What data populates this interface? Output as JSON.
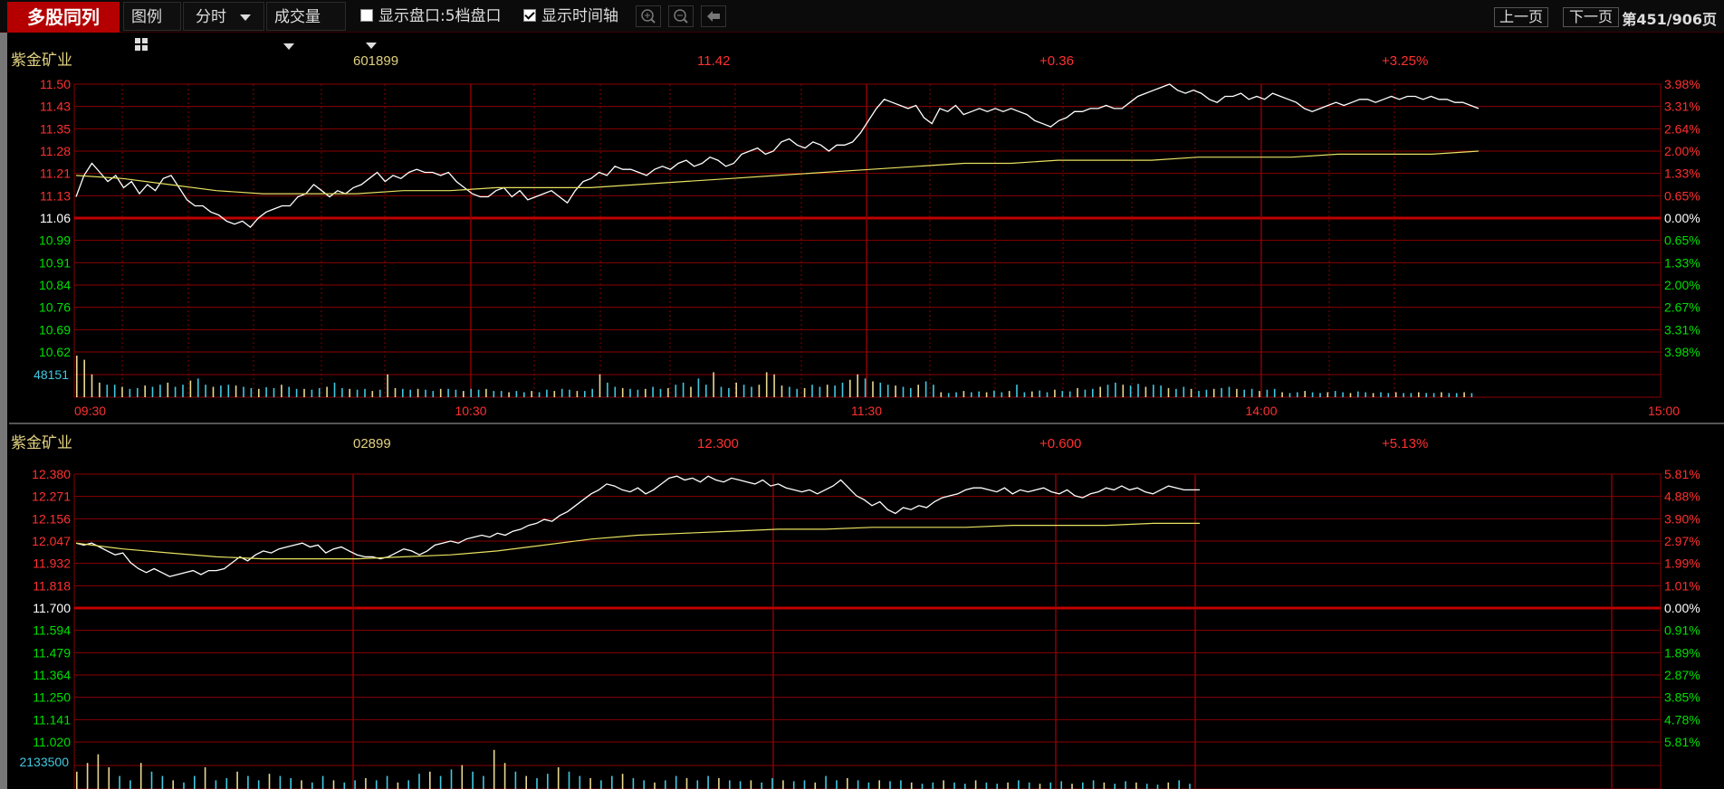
{
  "toolbar": {
    "title": "多股同列",
    "legend_label": "图例",
    "period": "分时",
    "indicator": "成交量",
    "show_orderbook_label": "显示盘口:5档盘口",
    "show_orderbook_checked": false,
    "show_time_axis_label": "显示时间轴",
    "show_time_axis_checked": true,
    "prev_page": "上一页",
    "next_page": "下一页",
    "page_info": "第451/906页"
  },
  "colors": {
    "bg": "#000000",
    "grid": "#8a0000",
    "grid_zero": "#c00000",
    "up": "#ff3030",
    "down": "#00e000",
    "price_line": "#ffffff",
    "avg_line": "#e8e060",
    "name": "#e0d080",
    "volume_up": "#e8d890",
    "volume_down": "#40c8e0",
    "volume_label": "#40c8e0"
  },
  "panels": [
    {
      "name": "紫金矿业",
      "code": "601899",
      "price": "11.42",
      "change": "+0.36",
      "change_pct": "+3.25%",
      "price_ticks": [
        "11.50",
        "11.43",
        "11.35",
        "11.28",
        "11.21",
        "11.13",
        "11.06",
        "10.99",
        "10.91",
        "10.84",
        "10.76",
        "10.69",
        "10.62"
      ],
      "pct_ticks": [
        "3.98%",
        "3.31%",
        "2.64%",
        "2.00%",
        "1.33%",
        "0.65%",
        "0.00%",
        "0.65%",
        "1.33%",
        "2.00%",
        "2.67%",
        "3.31%",
        "3.98%"
      ],
      "volume_label": "48151",
      "time_labels": [
        "09:30",
        "10:30",
        "11:30",
        "14:00",
        "15:00"
      ],
      "chart_data": {
        "type": "line",
        "series": [
          {
            "role": "price",
            "values": [
              11.13,
              11.2,
              11.24,
              11.21,
              11.18,
              11.2,
              11.16,
              11.18,
              11.14,
              11.17,
              11.15,
              11.19,
              11.2,
              11.16,
              11.12,
              11.1,
              11.1,
              11.08,
              11.07,
              11.05,
              11.04,
              11.05,
              11.03,
              11.06,
              11.08,
              11.09,
              11.1,
              11.1,
              11.13,
              11.14,
              11.17,
              11.15,
              11.13,
              11.15,
              11.14,
              11.16,
              11.17,
              11.19,
              11.21,
              11.18,
              11.2,
              11.19,
              11.21,
              11.22,
              11.21,
              11.21,
              11.2,
              11.21,
              11.18,
              11.16,
              11.14,
              11.13,
              11.13,
              11.15,
              11.16,
              11.13,
              11.15,
              11.12,
              11.13,
              11.14,
              11.15,
              11.13,
              11.11,
              11.15,
              11.18,
              11.19,
              11.21,
              11.2,
              11.23,
              11.22,
              11.22,
              11.21,
              11.2,
              11.22,
              11.23,
              11.22,
              11.24,
              11.25,
              11.23,
              11.24,
              11.26,
              11.25,
              11.23,
              11.24,
              11.27,
              11.28,
              11.29,
              11.27,
              11.28,
              11.31,
              11.32,
              11.3,
              11.29,
              11.31,
              11.3,
              11.28,
              11.3,
              11.3,
              11.31,
              11.34,
              11.38,
              11.42,
              11.45,
              11.44,
              11.43,
              11.42,
              11.43,
              11.39,
              11.37,
              11.42,
              11.41,
              11.43,
              11.4,
              11.41,
              11.42,
              11.41,
              11.42,
              11.41,
              11.42,
              11.41,
              11.4,
              11.38,
              11.37,
              11.36,
              11.38,
              11.39,
              11.41,
              11.41,
              11.42,
              11.42,
              11.43,
              11.42,
              11.42,
              11.44,
              11.46,
              11.47,
              11.48,
              11.49,
              11.5,
              11.48,
              11.47,
              11.48,
              11.47,
              11.45,
              11.44,
              11.46,
              11.46,
              11.47,
              11.45,
              11.46,
              11.45,
              11.47,
              11.46,
              11.45,
              11.44,
              11.42,
              11.41,
              11.42,
              11.43,
              11.44,
              11.43,
              11.44,
              11.45,
              11.45,
              11.44,
              11.45,
              11.46,
              11.45,
              11.46,
              11.46,
              11.45,
              11.46,
              11.45,
              11.45,
              11.44,
              11.44,
              11.43,
              11.42
            ]
          },
          {
            "role": "average",
            "values": [
              11.2,
              11.19,
              11.17,
              11.15,
              11.14,
              11.14,
              11.14,
              11.15,
              11.15,
              11.16,
              11.16,
              11.16,
              11.17,
              11.18,
              11.19,
              11.2,
              11.21,
              11.22,
              11.23,
              11.24,
              11.24,
              11.25,
              11.25,
              11.25,
              11.26,
              11.26,
              11.26,
              11.27,
              11.27,
              11.27,
              11.28
            ]
          }
        ],
        "ylim": [
          10.62,
          11.5
        ],
        "prev_close": 11.06
      },
      "volume_data": {
        "values": [
          1,
          0.9,
          0.55,
          0.35,
          0.3,
          0.3,
          0.25,
          0.2,
          0.22,
          0.28,
          0.25,
          0.3,
          0.35,
          0.25,
          0.3,
          0.4,
          0.45,
          0.3,
          0.25,
          0.28,
          0.3,
          0.28,
          0.25,
          0.22,
          0.2,
          0.24,
          0.22,
          0.3,
          0.25,
          0.2,
          0.2,
          0.18,
          0.22,
          0.25,
          0.35,
          0.22,
          0.2,
          0.18,
          0.2,
          0.15,
          0.18,
          0.55,
          0.22,
          0.2,
          0.18,
          0.2,
          0.18,
          0.15,
          0.2,
          0.2,
          0.18,
          0.15,
          0.2,
          0.18,
          0.2,
          0.15,
          0.15,
          0.12,
          0.15,
          0.12,
          0.15,
          0.12,
          0.18,
          0.15,
          0.2,
          0.18,
          0.15,
          0.15,
          0.2,
          0.55,
          0.35,
          0.25,
          0.22,
          0.2,
          0.18,
          0.2,
          0.25,
          0.2,
          0.22,
          0.3,
          0.35,
          0.25,
          0.45,
          0.3,
          0.6,
          0.25,
          0.22,
          0.35,
          0.3,
          0.25,
          0.3,
          0.6,
          0.55,
          0.28,
          0.25,
          0.2,
          0.22,
          0.3,
          0.25,
          0.3,
          0.28,
          0.35,
          0.42,
          0.55,
          0.45,
          0.38,
          0.35,
          0.3,
          0.28,
          0.25,
          0.22,
          0.3,
          0.38,
          0.3,
          0.12,
          0.1,
          0.12,
          0.15,
          0.12,
          0.14,
          0.12,
          0.16,
          0.12,
          0.15,
          0.3,
          0.12,
          0.14,
          0.16,
          0.12,
          0.18,
          0.15,
          0.14,
          0.22,
          0.18,
          0.2,
          0.25,
          0.3,
          0.35,
          0.3,
          0.28,
          0.32,
          0.25,
          0.3,
          0.28,
          0.22,
          0.2,
          0.25,
          0.2,
          0.15,
          0.18,
          0.2,
          0.22,
          0.25,
          0.2,
          0.18,
          0.2,
          0.15,
          0.18,
          0.2,
          0.12,
          0.1,
          0.12,
          0.15,
          0.12,
          0.1,
          0.12,
          0.15,
          0.12,
          0.1,
          0.14,
          0.12,
          0.1,
          0.12,
          0.1,
          0.12,
          0.1,
          0.1,
          0.12,
          0.1,
          0.1,
          0.12,
          0.1,
          0.1,
          0.12,
          0.1
        ]
      }
    },
    {
      "name": "紫金矿业",
      "code": "02899",
      "price": "12.300",
      "change": "+0.600",
      "change_pct": "+5.13%",
      "price_ticks": [
        "12.380",
        "12.271",
        "12.156",
        "12.047",
        "11.932",
        "11.818",
        "11.700",
        "11.594",
        "11.479",
        "11.364",
        "11.250",
        "11.141",
        "11.020"
      ],
      "pct_ticks": [
        "5.81%",
        "4.88%",
        "3.90%",
        "2.97%",
        "1.99%",
        "1.01%",
        "0.00%",
        "0.91%",
        "1.89%",
        "2.87%",
        "3.85%",
        "4.78%",
        "5.81%"
      ],
      "volume_label": "2133500",
      "time_labels": [],
      "chart_data": {
        "type": "line",
        "series": [
          {
            "role": "price",
            "values": [
              12.03,
              12.02,
              12.03,
              12.01,
              11.99,
              11.97,
              11.98,
              11.93,
              11.9,
              11.88,
              11.9,
              11.88,
              11.86,
              11.87,
              11.88,
              11.89,
              11.87,
              11.89,
              11.89,
              11.9,
              11.93,
              11.96,
              11.94,
              11.97,
              11.99,
              11.98,
              12.0,
              12.01,
              12.02,
              12.03,
              12.01,
              12.02,
              11.98,
              12.0,
              12.01,
              11.99,
              11.97,
              11.96,
              11.96,
              11.95,
              11.96,
              11.98,
              12.0,
              11.99,
              11.97,
              11.99,
              12.02,
              12.03,
              12.04,
              12.03,
              12.05,
              12.06,
              12.07,
              12.06,
              12.08,
              12.07,
              12.09,
              12.1,
              12.12,
              12.13,
              12.15,
              12.14,
              12.17,
              12.19,
              12.22,
              12.25,
              12.28,
              12.3,
              12.33,
              12.32,
              12.3,
              12.29,
              12.31,
              12.28,
              12.3,
              12.33,
              12.36,
              12.37,
              12.35,
              12.36,
              12.34,
              12.37,
              12.35,
              12.34,
              12.36,
              12.35,
              12.34,
              12.33,
              12.35,
              12.32,
              12.33,
              12.31,
              12.3,
              12.29,
              12.3,
              12.28,
              12.3,
              12.32,
              12.35,
              12.31,
              12.27,
              12.25,
              12.22,
              12.24,
              12.2,
              12.18,
              12.21,
              12.2,
              12.22,
              12.21,
              12.24,
              12.26,
              12.27,
              12.28,
              12.3,
              12.31,
              12.31,
              12.3,
              12.29,
              12.31,
              12.28,
              12.3,
              12.29,
              12.3,
              12.31,
              12.29,
              12.28,
              12.3,
              12.27,
              12.26,
              12.28,
              12.29,
              12.31,
              12.3,
              12.32,
              12.3,
              12.31,
              12.29,
              12.28,
              12.3,
              12.32,
              12.31,
              12.3,
              12.3,
              12.3
            ]
          },
          {
            "role": "average",
            "values": [
              12.03,
              12.0,
              11.98,
              11.96,
              11.95,
              11.95,
              11.95,
              11.96,
              11.97,
              11.99,
              12.02,
              12.05,
              12.07,
              12.08,
              12.09,
              12.1,
              12.1,
              12.11,
              12.11,
              12.11,
              12.12,
              12.12,
              12.12,
              12.13,
              12.13
            ]
          }
        ],
        "ylim": [
          11.02,
          12.38
        ],
        "prev_close": 11.7
      },
      "volume_data": {
        "values": [
          0.4,
          0.6,
          0.8,
          0.5,
          0.3,
          0.2,
          0.6,
          0.4,
          0.3,
          0.2,
          0.15,
          0.3,
          0.5,
          0.2,
          0.25,
          0.4,
          0.3,
          0.2,
          0.35,
          0.3,
          0.25,
          0.2,
          0.15,
          0.3,
          0.2,
          0.15,
          0.2,
          0.25,
          0.2,
          0.3,
          0.15,
          0.2,
          0.35,
          0.4,
          0.3,
          0.45,
          0.55,
          0.4,
          0.3,
          0.9,
          0.6,
          0.4,
          0.3,
          0.25,
          0.35,
          0.5,
          0.4,
          0.3,
          0.25,
          0.2,
          0.3,
          0.35,
          0.25,
          0.2,
          0.15,
          0.2,
          0.3,
          0.25,
          0.2,
          0.3,
          0.25,
          0.2,
          0.18,
          0.2,
          0.15,
          0.25,
          0.2,
          0.18,
          0.2,
          0.15,
          0.3,
          0.2,
          0.25,
          0.2,
          0.15,
          0.2,
          0.18,
          0.2,
          0.15,
          0.12,
          0.15,
          0.2,
          0.15,
          0.12,
          0.2,
          0.15,
          0.12,
          0.15,
          0.2,
          0.15,
          0.12,
          0.15,
          0.18,
          0.12,
          0.15,
          0.2,
          0.15,
          0.12,
          0.18,
          0.15,
          0.12,
          0.1,
          0.15,
          0.2,
          0.12
        ]
      }
    }
  ]
}
